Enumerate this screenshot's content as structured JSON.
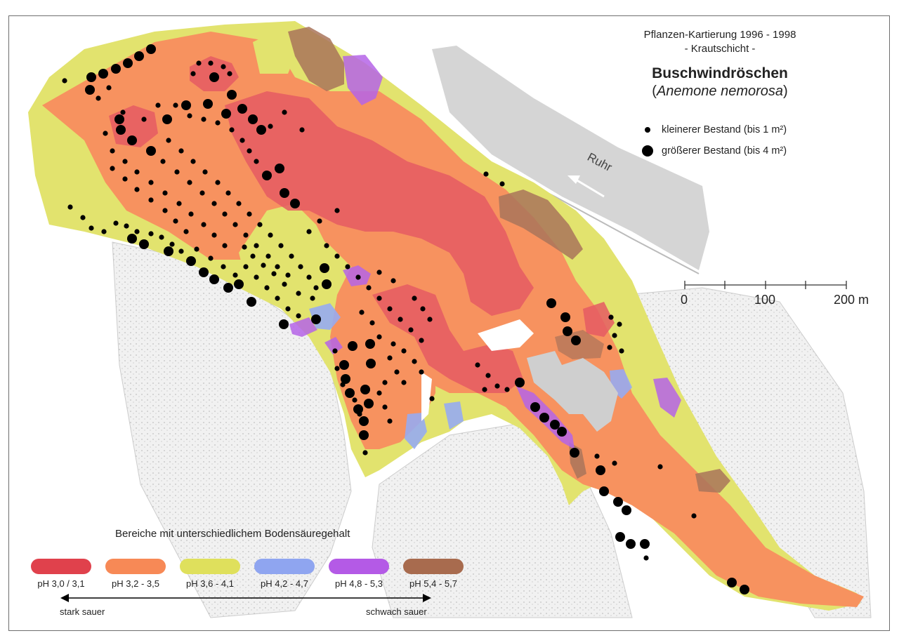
{
  "title": {
    "line1": "Pflanzen-Kartierung 1996 - 1998",
    "line2": "- Krautschicht -",
    "species": "Buschwindröschen",
    "latin_open": "(",
    "latin": "Anemone nemorosa",
    "latin_close": ")"
  },
  "point_legend": {
    "small_label": "kleinerer Bestand (bis 1 m²)",
    "large_label": "größerer Bestand (bis 4 m²)"
  },
  "river_label": "Ruhr",
  "scale_bar": {
    "labels": [
      "0",
      "100",
      "200 m"
    ]
  },
  "ph_legend": {
    "title": "Bereiche mit unterschiedlichem Bodensäuregehalt",
    "classes": [
      {
        "label": "pH 3,0 / 3,1",
        "color": "#e0414c"
      },
      {
        "label": "pH 3,2 - 3,5",
        "color": "#f78956"
      },
      {
        "label": "pH 3,6 - 4,1",
        "color": "#dfe05c"
      },
      {
        "label": "pH 4,2 - 4,7",
        "color": "#8fa5f0"
      },
      {
        "label": "pH 4,8 - 5,3",
        "color": "#b45ae6"
      },
      {
        "label": "pH 5,4 - 5,7",
        "color": "#a86b4e"
      }
    ],
    "left_end": "stark sauer",
    "right_end": "schwach sauer"
  }
}
